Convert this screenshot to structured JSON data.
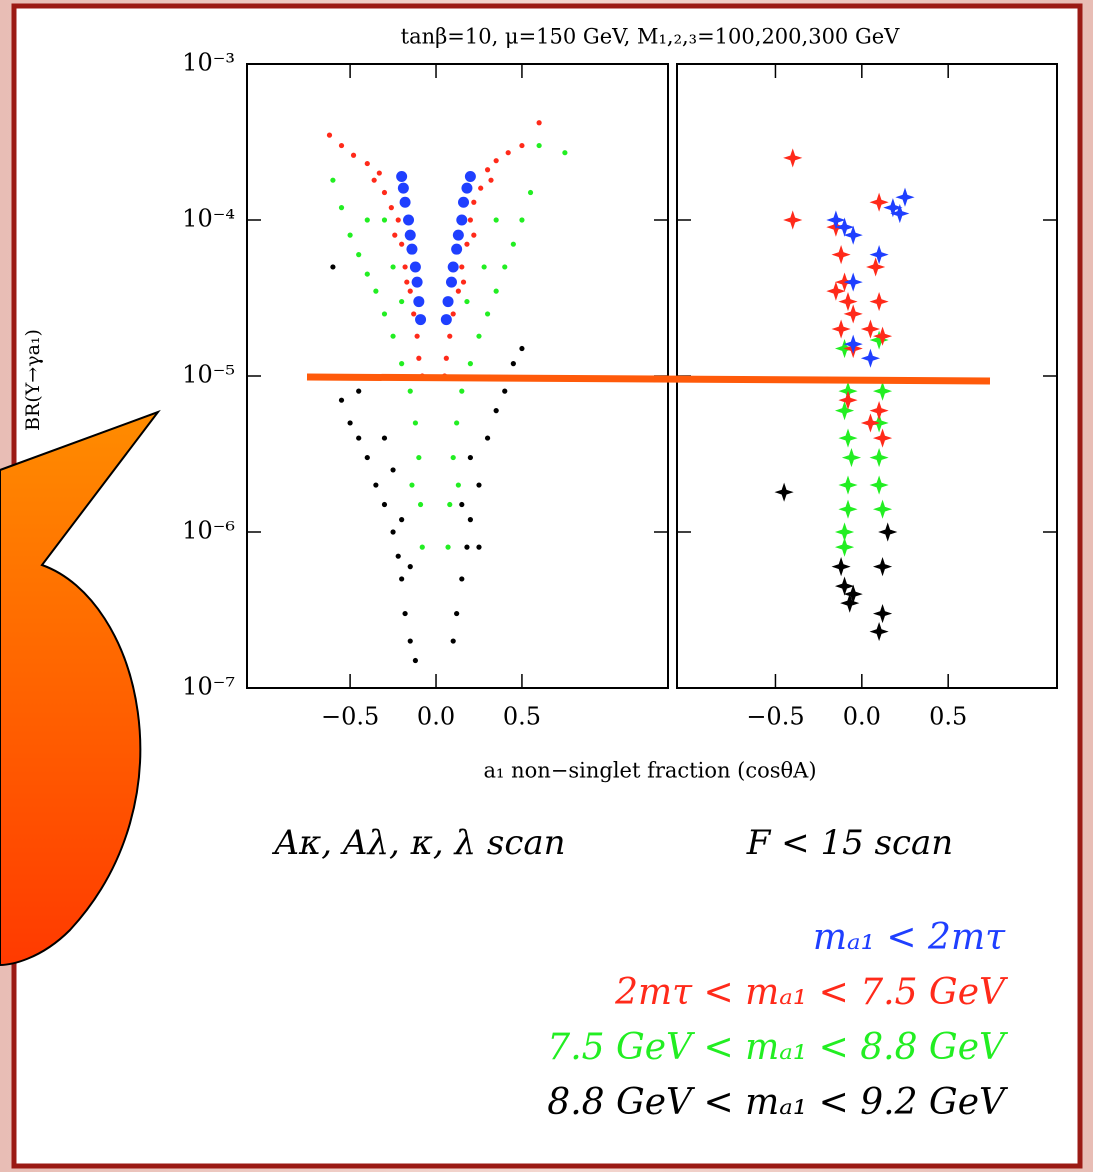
{
  "chart_data": [
    {
      "type": "scatter",
      "marker": "dot",
      "log_y": true,
      "title": "tanβ=10, μ=150 GeV, M₁,₂,₃=100,200,300 GeV",
      "subtitle": "Aκ, Aλ, κ, λ scan",
      "xlabel": "a₁ non−singlet fraction (cosθA)",
      "ylabel": "BR(Υ→γa₁)",
      "xlim": [
        -1.1,
        1.35
      ],
      "ylim": [
        1e-07,
        0.001
      ],
      "xticks": [
        {
          "value": -0.5,
          "label": "−0.5"
        },
        {
          "value": 0,
          "label": "0.0"
        },
        {
          "value": 0.5,
          "label": "0.5"
        }
      ],
      "yticks": [
        {
          "value": 1e-07,
          "label": "10⁻⁷"
        },
        {
          "value": 1e-06,
          "label": "10⁻⁶"
        },
        {
          "value": 1e-05,
          "label": "10⁻⁵"
        },
        {
          "value": 0.0001,
          "label": "10⁻⁴"
        },
        {
          "value": 0.001,
          "label": "10⁻³"
        }
      ],
      "series": [
        {
          "name": "mₐ₁ < 2mτ",
          "color": "#1f3fff",
          "x": [
            -0.2,
            -0.19,
            -0.18,
            -0.16,
            -0.15,
            -0.14,
            -0.12,
            -0.11,
            -0.1,
            -0.09,
            0.2,
            0.18,
            0.16,
            0.15,
            0.13,
            0.12,
            0.1,
            0.09,
            0.07,
            0.06
          ],
          "values": [
            0.00019,
            0.00016,
            0.00013,
            0.0001,
            8e-05,
            6.5e-05,
            5e-05,
            4e-05,
            3e-05,
            2.3e-05,
            0.00019,
            0.00016,
            0.00013,
            0.0001,
            8e-05,
            6.5e-05,
            5e-05,
            4e-05,
            3e-05,
            2.3e-05
          ]
        },
        {
          "name": "2mτ < mₐ₁ < 7.5 GeV",
          "color": "#ff2a1a",
          "x": [
            -0.62,
            -0.55,
            -0.48,
            -0.4,
            -0.33,
            -0.3,
            -0.26,
            -0.22,
            -0.2,
            -0.18,
            -0.15,
            -0.13,
            -0.11,
            -0.1,
            -0.08,
            -0.36,
            -0.24,
            -0.17,
            0.6,
            0.5,
            0.42,
            0.35,
            0.3,
            0.26,
            0.22,
            0.2,
            0.18,
            0.15,
            0.13,
            0.1,
            0.08,
            0.06,
            0.05,
            0.32,
            0.22,
            0.16
          ],
          "values": [
            0.00035,
            0.0003,
            0.00026,
            0.00023,
            0.0002,
            0.00015,
            0.00012,
            0.0001,
            7e-05,
            5e-05,
            3.5e-05,
            2.5e-05,
            1.8e-05,
            1.3e-05,
            1e-05,
            0.00018,
            8e-05,
            4e-05,
            0.00042,
            0.0003,
            0.00027,
            0.00024,
            0.00021,
            0.00016,
            0.00013,
            0.0001,
            7e-05,
            5e-05,
            3.5e-05,
            2.5e-05,
            1.8e-05,
            1.3e-05,
            1e-05,
            0.00018,
            8e-05,
            4e-05
          ]
        },
        {
          "name": "7.5 GeV < mₐ₁ < 8.8 GeV",
          "color": "#22ee22",
          "x": [
            -0.6,
            -0.55,
            -0.5,
            -0.45,
            -0.4,
            -0.35,
            -0.3,
            -0.25,
            -0.2,
            -0.15,
            -0.12,
            -0.1,
            -0.09,
            -0.08,
            -0.3,
            -0.25,
            -0.4,
            -0.2,
            -0.14,
            0.6,
            0.75,
            0.55,
            0.5,
            0.45,
            0.4,
            0.35,
            0.3,
            0.25,
            0.2,
            0.15,
            0.12,
            0.1,
            0.08,
            0.07,
            0.35,
            0.28,
            0.18,
            0.13
          ],
          "values": [
            0.00018,
            0.00012,
            8e-05,
            6e-05,
            4.5e-05,
            3.5e-05,
            2.5e-05,
            1.8e-05,
            1.2e-05,
            8e-06,
            5e-06,
            3e-06,
            1.5e-06,
            8e-07,
            0.0001,
            5e-05,
            0.0001,
            3e-05,
            2e-06,
            0.0003,
            0.00027,
            0.00015,
            0.0001,
            7e-05,
            5e-05,
            3.5e-05,
            2.5e-05,
            1.8e-05,
            1.2e-05,
            8e-06,
            5e-06,
            3e-06,
            1.5e-06,
            8e-07,
            0.0001,
            5e-05,
            3e-05,
            2e-06
          ]
        },
        {
          "name": "8.8 GeV < mₐ₁ < 9.2 GeV",
          "color": "#000000",
          "x": [
            -0.55,
            -0.5,
            -0.45,
            -0.4,
            -0.35,
            -0.3,
            -0.25,
            -0.22,
            -0.2,
            -0.18,
            -0.15,
            -0.12,
            -0.6,
            -0.45,
            -0.3,
            -0.25,
            -0.2,
            -0.15,
            0.1,
            0.12,
            0.15,
            0.18,
            0.2,
            0.25,
            0.3,
            0.35,
            0.4,
            0.45,
            0.5,
            0.25,
            0.2,
            0.15
          ],
          "values": [
            7e-06,
            5e-06,
            4e-06,
            3e-06,
            2e-06,
            1.5e-06,
            1e-06,
            7e-07,
            5e-07,
            3e-07,
            2e-07,
            1.5e-07,
            5e-05,
            8e-06,
            4e-06,
            2.5e-06,
            1.2e-06,
            6e-07,
            2e-07,
            3e-07,
            5e-07,
            8e-07,
            1.2e-06,
            2e-06,
            4e-06,
            6e-06,
            8e-06,
            1.2e-05,
            1.5e-05,
            8e-07,
            3e-06,
            1.5e-06
          ]
        }
      ]
    },
    {
      "type": "scatter",
      "marker": "star",
      "log_y": true,
      "subtitle": "F < 15 scan",
      "xlim": [
        -1.07,
        1.13
      ],
      "ylim": [
        1e-07,
        0.001
      ],
      "xticks": [
        {
          "value": -0.5,
          "label": "−0.5"
        },
        {
          "value": 0,
          "label": "0.0"
        },
        {
          "value": 0.5,
          "label": "0.5"
        }
      ],
      "yticks": [
        1e-07,
        1e-06,
        1e-05,
        0.0001,
        0.001
      ],
      "series": [
        {
          "color": "#1f3fff",
          "x": [
            -0.15,
            -0.1,
            -0.05,
            0.25,
            0.22,
            0.18,
            0.1,
            -0.05,
            -0.05,
            0.05
          ],
          "values": [
            0.0001,
            9e-05,
            8e-05,
            0.00014,
            0.00011,
            0.00012,
            6e-05,
            4e-05,
            1.6e-05,
            1.3e-05
          ]
        },
        {
          "color": "#ff2a1a",
          "x": [
            -0.4,
            -0.4,
            -0.15,
            -0.12,
            -0.1,
            -0.08,
            -0.15,
            -0.05,
            -0.12,
            0.1,
            0.08,
            0.1,
            0.05,
            0.12,
            -0.08,
            0.1,
            0.05,
            0.12,
            -0.05
          ],
          "values": [
            0.00025,
            0.0001,
            9e-05,
            6e-05,
            4e-05,
            3e-05,
            3.5e-05,
            2.5e-05,
            2e-05,
            0.00013,
            5e-05,
            3e-05,
            2e-05,
            1.8e-05,
            7e-06,
            6e-06,
            5e-06,
            4e-06,
            1.5e-05
          ]
        },
        {
          "color": "#22ee22",
          "x": [
            -0.1,
            -0.08,
            -0.1,
            -0.08,
            -0.06,
            -0.08,
            -0.08,
            -0.1,
            0.1,
            0.12,
            0.1,
            0.1,
            0.1,
            0.12,
            -0.1
          ],
          "values": [
            1.5e-05,
            8e-06,
            6e-06,
            4e-06,
            3e-06,
            2e-06,
            1.4e-06,
            1e-06,
            1.7e-05,
            8e-06,
            5e-06,
            3e-06,
            2e-06,
            1.4e-06,
            8e-07
          ]
        },
        {
          "color": "#000000",
          "x": [
            -0.45,
            -0.12,
            -0.1,
            -0.07,
            -0.05,
            0.15,
            0.12,
            0.12,
            0.1
          ],
          "values": [
            1.8e-06,
            6e-07,
            4.5e-07,
            3.5e-07,
            4e-07,
            1e-06,
            6e-07,
            3e-07,
            2.3e-07
          ]
        }
      ]
    }
  ]
}
